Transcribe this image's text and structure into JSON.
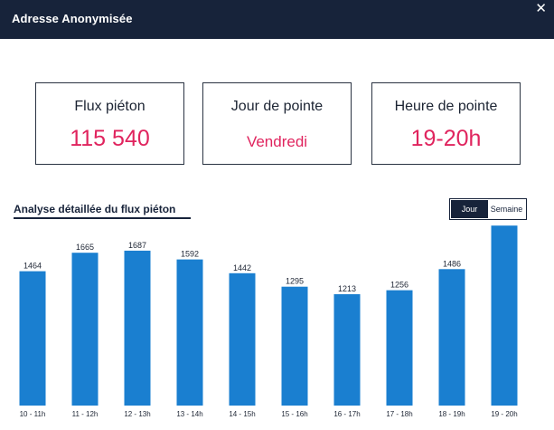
{
  "header": {
    "title": "Adresse Anonymisée",
    "close_icon": "close-icon"
  },
  "kpis": [
    {
      "label": "Flux piéton",
      "value": "115 540"
    },
    {
      "label": "Jour de pointe",
      "value": "Vendredi"
    },
    {
      "label": "Heure de pointe",
      "value": "19-20h"
    }
  ],
  "section": {
    "title": "Analyse détaillée du flux piéton"
  },
  "toggle": {
    "day_label": "Jour",
    "week_label": "Semaine",
    "selected": "Jour"
  },
  "colors": {
    "header_bg": "#17233a",
    "accent": "#e0245e",
    "bar": "#1a7fd0"
  },
  "chart_data": {
    "type": "bar",
    "title": "Analyse détaillée du flux piéton",
    "categories": [
      "10 - 11h",
      "11 - 12h",
      "12 - 13h",
      "13 - 14h",
      "14 - 15h",
      "15 - 16h",
      "16 - 17h",
      "17 - 18h",
      "18 - 19h",
      "19 - 20h"
    ],
    "values": [
      1464,
      1665,
      1687,
      1592,
      1442,
      1295,
      1213,
      1256,
      1486,
      1961
    ],
    "xlabel": "",
    "ylabel": "",
    "ylim": [
      0,
      2000
    ],
    "grid": false,
    "legend": "none"
  }
}
